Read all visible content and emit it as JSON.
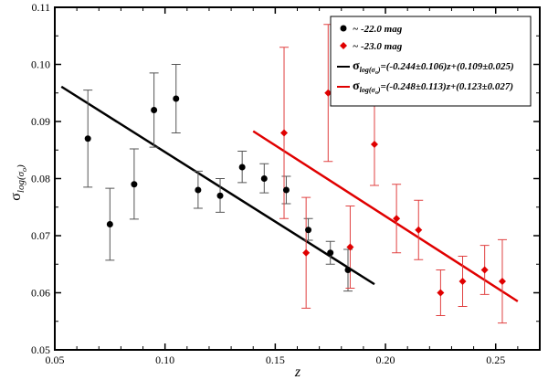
{
  "chart_data": {
    "type": "scatter",
    "xlabel": "z",
    "ylabel": "σ",
    "ylabel_sub": "log(σ",
    "ylabel_sub_o": "o",
    "ylabel_sub_close": ")",
    "xlim": [
      0.05,
      0.27
    ],
    "ylim": [
      0.05,
      0.11
    ],
    "xticks": [
      0.05,
      0.1,
      0.15,
      0.2,
      0.25
    ],
    "xtick_labels": [
      "0.05",
      "0.10",
      "0.15",
      "0.20",
      "0.25"
    ],
    "yticks": [
      0.05,
      0.06,
      0.07,
      0.08,
      0.09,
      0.1,
      0.11
    ],
    "ytick_labels": [
      "0.05",
      "0.06",
      "0.07",
      "0.08",
      "0.09",
      "0.10",
      "0.11"
    ],
    "grid": false,
    "legend_position": "top-right",
    "series": [
      {
        "name": "~ -22.0 mag",
        "color": "#000000",
        "marker": "circle",
        "points": [
          {
            "x": 0.065,
            "y": 0.087,
            "err": [
              0.0785,
              0.0955
            ]
          },
          {
            "x": 0.075,
            "y": 0.072,
            "err": [
              0.0657,
              0.0783
            ]
          },
          {
            "x": 0.086,
            "y": 0.079,
            "err": [
              0.0729,
              0.0852
            ]
          },
          {
            "x": 0.095,
            "y": 0.092,
            "err": [
              0.0855,
              0.0985
            ]
          },
          {
            "x": 0.105,
            "y": 0.094,
            "err": [
              0.088,
              0.1
            ]
          },
          {
            "x": 0.115,
            "y": 0.078,
            "err": [
              0.0748,
              0.0813
            ]
          },
          {
            "x": 0.125,
            "y": 0.077,
            "err": [
              0.0741,
              0.08
            ]
          },
          {
            "x": 0.135,
            "y": 0.082,
            "err": [
              0.0793,
              0.0848
            ]
          },
          {
            "x": 0.145,
            "y": 0.08,
            "err": [
              0.0775,
              0.0826
            ]
          },
          {
            "x": 0.155,
            "y": 0.078,
            "err": [
              0.0756,
              0.0804
            ]
          },
          {
            "x": 0.165,
            "y": 0.071,
            "err": [
              0.0692,
              0.073
            ]
          },
          {
            "x": 0.175,
            "y": 0.067,
            "err": [
              0.065,
              0.069
            ]
          },
          {
            "x": 0.183,
            "y": 0.064,
            "err": [
              0.0603,
              0.0676
            ]
          }
        ],
        "fit": {
          "label": "σ",
          "label_sub": "log(σ",
          "label_sub_o": "o",
          "label_sub_close": ")",
          "label_eq": "=(-0.244±0.106)z+(0.109±0.025)",
          "x_range": [
            0.053,
            0.195
          ],
          "y_range": [
            0.0961,
            0.0615
          ]
        }
      },
      {
        "name": "~ -23.0 mag",
        "color": "#e00000",
        "marker": "diamond",
        "points": [
          {
            "x": 0.154,
            "y": 0.088,
            "err": [
              0.073,
              0.103
            ]
          },
          {
            "x": 0.164,
            "y": 0.067,
            "err": [
              0.0573,
              0.0767
            ]
          },
          {
            "x": 0.174,
            "y": 0.095,
            "err": [
              0.083,
              0.107
            ]
          },
          {
            "x": 0.184,
            "y": 0.068,
            "err": [
              0.0608,
              0.0752
            ]
          },
          {
            "x": 0.195,
            "y": 0.086,
            "err": [
              0.0788,
              0.0932
            ]
          },
          {
            "x": 0.205,
            "y": 0.073,
            "err": [
              0.067,
              0.079
            ]
          },
          {
            "x": 0.215,
            "y": 0.071,
            "err": [
              0.0658,
              0.0762
            ]
          },
          {
            "x": 0.225,
            "y": 0.06,
            "err": [
              0.056,
              0.064
            ]
          },
          {
            "x": 0.235,
            "y": 0.062,
            "err": [
              0.0576,
              0.0664
            ]
          },
          {
            "x": 0.245,
            "y": 0.064,
            "err": [
              0.0597,
              0.0683
            ]
          },
          {
            "x": 0.253,
            "y": 0.062,
            "err": [
              0.0547,
              0.0693
            ]
          }
        ],
        "fit": {
          "label": "σ",
          "label_sub": "log(σ",
          "label_sub_o": "o",
          "label_sub_close": ")",
          "label_eq": "=(-0.248±0.113)z+(0.123±0.027)",
          "x_range": [
            0.14,
            0.26
          ],
          "y_range": [
            0.0883,
            0.0585
          ]
        }
      }
    ]
  }
}
